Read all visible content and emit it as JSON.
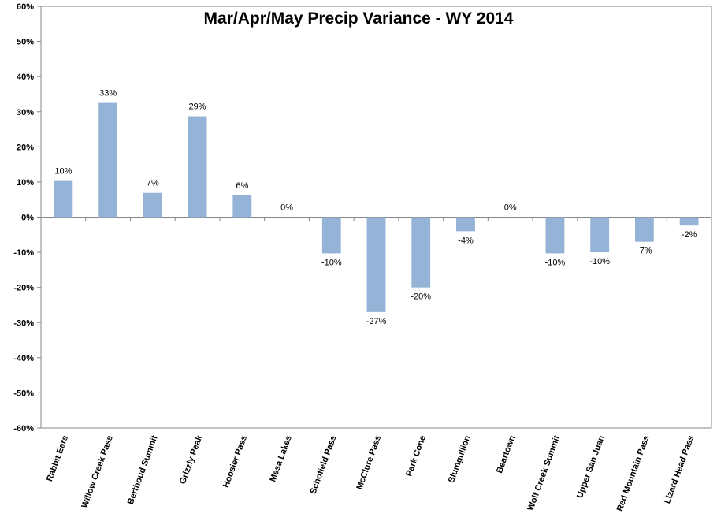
{
  "chart_data": {
    "type": "bar",
    "title": "Mar/Apr/May Precip Variance - WY 2014",
    "xlabel": "",
    "ylabel": "",
    "ylim": [
      -60,
      60
    ],
    "ytick_step": 10,
    "ytick_labels": [
      "-60%",
      "-50%",
      "-40%",
      "-30%",
      "-20%",
      "-10%",
      "0%",
      "10%",
      "20%",
      "30%",
      "40%",
      "50%",
      "60%"
    ],
    "grid": false,
    "legend": "none",
    "bar_color": "#95b3d7",
    "categories": [
      "Rabbit Ears",
      "Willow Creek Pass",
      "Berthoud Summit",
      "Grizzly Peak",
      "Hoosier Pass",
      "Mesa Lakes",
      "Schofield Pass",
      "McClure Pass",
      "Park Cone",
      "Slumgullion",
      "Beartown",
      "Wolf Creek Summit",
      "Upper San Juan",
      "Red Mountain Pass",
      "Lizard Head Pass"
    ],
    "values": [
      10.3,
      32.5,
      6.9,
      28.7,
      6.2,
      0,
      -10.3,
      -27,
      -20,
      -4,
      0,
      -10.3,
      -10,
      -7,
      -2.4
    ],
    "data_labels": [
      "10%",
      "33%",
      "7%",
      "29%",
      "6%",
      "0%",
      "-10%",
      "-27%",
      "-20%",
      "-4%",
      "0%",
      "-10%",
      "-10%",
      "-7%",
      "-2%"
    ]
  }
}
